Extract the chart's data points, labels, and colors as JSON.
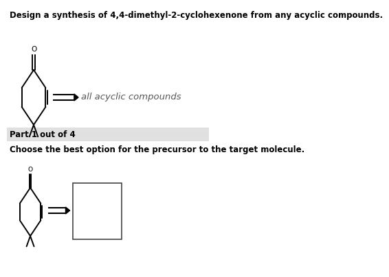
{
  "title_text": "Design a synthesis of 4,4-dimethyl-2-cyclohexenone from any acyclic compounds.",
  "part_label": "Part 1 out of 4",
  "part_bg_color": "#e0e0e0",
  "question2_text": "Choose the best option for the precursor to the target molecule.",
  "text_color": "#000000",
  "bg_color": "#ffffff",
  "acyclic_label": "all acyclic compounds",
  "title_fontsize": 8.5,
  "label_fontsize": 8.5,
  "part_fontsize": 8.5,
  "acyclic_fontsize": 9.5
}
